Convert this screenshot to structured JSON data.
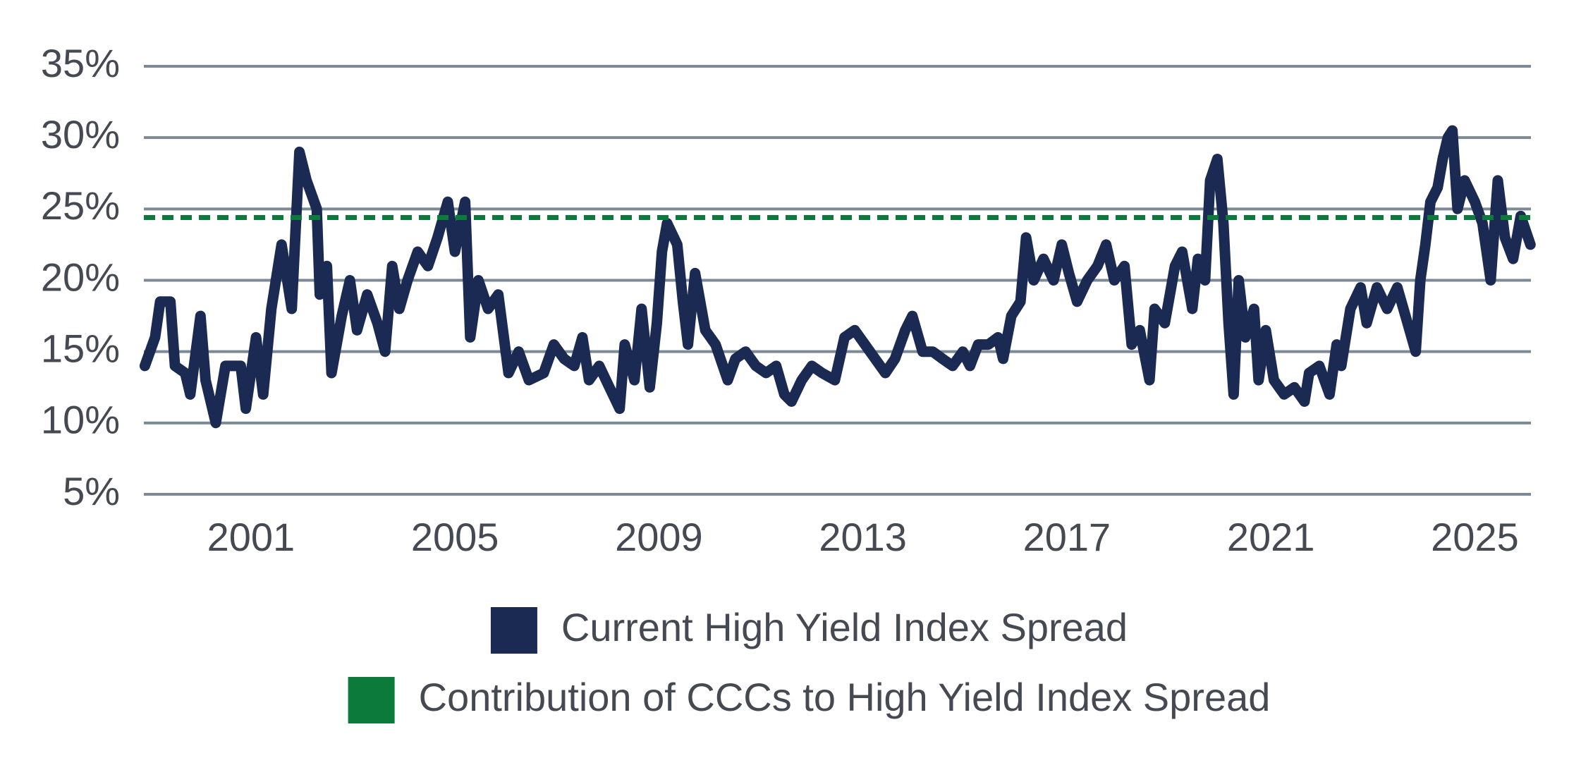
{
  "chart_data": {
    "type": "line",
    "series": [
      {
        "name": "Current High Yield Index Spread",
        "color": "#1b2a52",
        "x": [
          1998.92,
          1999.12,
          1999.22,
          1999.42,
          1999.51,
          1999.71,
          1999.81,
          2000.01,
          2000.11,
          2000.31,
          2000.5,
          2000.8,
          2000.9,
          2001.1,
          2001.24,
          2001.4,
          2001.6,
          2001.8,
          2001.95,
          2002.09,
          2002.29,
          2002.35,
          2002.49,
          2002.58,
          2002.78,
          2002.94,
          2003.08,
          2003.28,
          2003.48,
          2003.63,
          2003.77,
          2003.91,
          2004.07,
          2004.27,
          2004.47,
          2004.66,
          2004.86,
          2005.0,
          2005.2,
          2005.3,
          2005.46,
          2005.65,
          2005.85,
          2006.05,
          2006.25,
          2006.45,
          2006.74,
          2006.94,
          2007.14,
          2007.34,
          2007.5,
          2007.63,
          2007.83,
          2008.03,
          2008.23,
          2008.33,
          2008.52,
          2008.66,
          2008.82,
          2008.96,
          2009.06,
          2009.16,
          2009.36,
          2009.47,
          2009.57,
          2009.71,
          2009.91,
          2010.11,
          2010.35,
          2010.5,
          2010.7,
          2010.9,
          2011.1,
          2011.3,
          2011.46,
          2011.6,
          2011.8,
          2012.0,
          2012.2,
          2012.45,
          2012.64,
          2012.84,
          2013.04,
          2013.24,
          2013.44,
          2013.63,
          2013.83,
          2013.97,
          2014.17,
          2014.37,
          2014.56,
          2014.76,
          2014.96,
          2015.1,
          2015.26,
          2015.46,
          2015.65,
          2015.75,
          2015.91,
          2016.09,
          2016.2,
          2016.35,
          2016.54,
          2016.74,
          2016.9,
          2017.04,
          2017.2,
          2017.4,
          2017.6,
          2017.77,
          2017.93,
          2018.13,
          2018.27,
          2018.43,
          2018.62,
          2018.72,
          2018.92,
          2019.12,
          2019.26,
          2019.46,
          2019.57,
          2019.71,
          2019.81,
          2019.95,
          2020.07,
          2020.17,
          2020.27,
          2020.37,
          2020.5,
          2020.67,
          2020.76,
          2020.9,
          2021.06,
          2021.26,
          2021.46,
          2021.66,
          2021.75,
          2021.95,
          2022.15,
          2022.29,
          2022.38,
          2022.56,
          2022.76,
          2022.88,
          2023.08,
          2023.28,
          2023.48,
          2023.68,
          2023.84,
          2023.93,
          2024.03,
          2024.13,
          2024.27,
          2024.37,
          2024.47,
          2024.56,
          2024.66,
          2024.8,
          2025.0,
          2025.15,
          2025.31,
          2025.45,
          2025.59,
          2025.75,
          2025.9,
          2026.09
        ],
        "values": [
          14,
          16,
          18.5,
          18.5,
          14,
          13.5,
          12,
          17.5,
          13,
          10,
          14,
          14,
          11,
          16,
          12,
          18,
          22.5,
          18,
          29,
          27,
          25,
          19,
          21,
          13.5,
          17.5,
          20,
          16.5,
          19,
          17,
          15,
          21,
          18,
          20,
          22,
          21,
          23,
          25.5,
          22,
          25.5,
          16,
          20,
          18,
          19,
          13.5,
          15,
          13,
          13.5,
          15.5,
          14.5,
          14,
          16,
          13,
          14,
          12.5,
          11,
          15.5,
          13,
          18,
          12.5,
          17,
          22,
          24,
          22.5,
          18.5,
          15.5,
          20.5,
          16.5,
          15.5,
          13,
          14.5,
          15,
          14,
          13.5,
          14,
          12,
          11.5,
          13,
          14,
          13.5,
          13,
          16,
          16.5,
          15.5,
          14.5,
          13.5,
          14.5,
          16.5,
          17.5,
          15,
          15,
          14.5,
          14,
          15,
          14,
          15.5,
          15.5,
          16,
          14.5,
          17.5,
          18.5,
          23,
          20,
          21.5,
          20,
          22.5,
          20.5,
          18.5,
          20,
          21,
          22.5,
          20,
          21,
          15.5,
          16.5,
          13,
          18,
          17,
          21,
          22,
          18,
          21.5,
          20,
          27,
          28.5,
          24,
          17,
          12,
          20,
          16,
          18,
          13,
          16.5,
          13,
          12,
          12.5,
          11.5,
          13.5,
          14,
          12,
          15.5,
          14,
          18,
          19.5,
          17,
          19.5,
          18,
          19.5,
          17,
          15,
          20,
          22.5,
          25.5,
          26.5,
          28.5,
          30,
          30.5,
          25,
          27,
          25.5,
          24,
          20,
          27,
          23,
          21.5,
          24.5,
          22.5
        ]
      }
    ],
    "lines": [
      {
        "name": "Contribution of CCCs to High Yield Index Spread",
        "color": "#0b7a3b",
        "value": 24.4,
        "dashed": true
      }
    ],
    "xlim": [
      1998.9,
      2026.1
    ],
    "xticks": [
      2001,
      2005,
      2009,
      2013,
      2017,
      2021,
      2025
    ],
    "ylim": [
      5,
      35
    ],
    "yticks": [
      {
        "value": 5,
        "label": "5%"
      },
      {
        "value": 10,
        "label": "10%"
      },
      {
        "value": 15,
        "label": "15%"
      },
      {
        "value": 20,
        "label": "20%"
      },
      {
        "value": 25,
        "label": "25%"
      },
      {
        "value": 30,
        "label": "30%"
      },
      {
        "value": 35,
        "label": "35%"
      }
    ],
    "grid": true,
    "legend": "bottom"
  }
}
